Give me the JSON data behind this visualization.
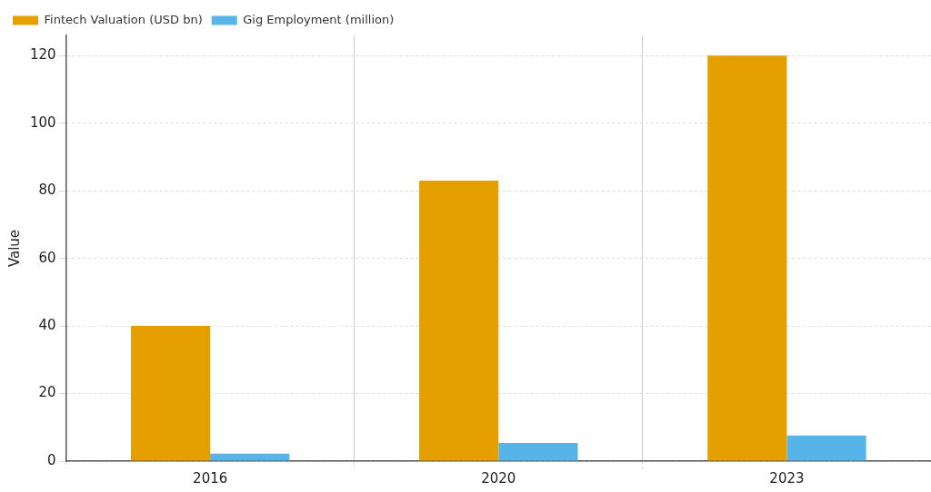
{
  "chart_data": {
    "type": "bar",
    "ylabel": "Value",
    "categories": [
      "2016",
      "2020",
      "2023"
    ],
    "series": [
      {
        "name": "Fintech Valuation (USD bn)",
        "color": "#e69f00",
        "values": [
          40,
          83,
          120
        ]
      },
      {
        "name": "Gig Employment (million)",
        "color": "#56b4e9",
        "values": [
          2.2,
          5.4,
          7.6
        ]
      }
    ],
    "ylim": [
      0,
      126
    ],
    "yticks": [
      0,
      20,
      40,
      60,
      80,
      100,
      120
    ],
    "grid": true,
    "legend": "top left"
  }
}
